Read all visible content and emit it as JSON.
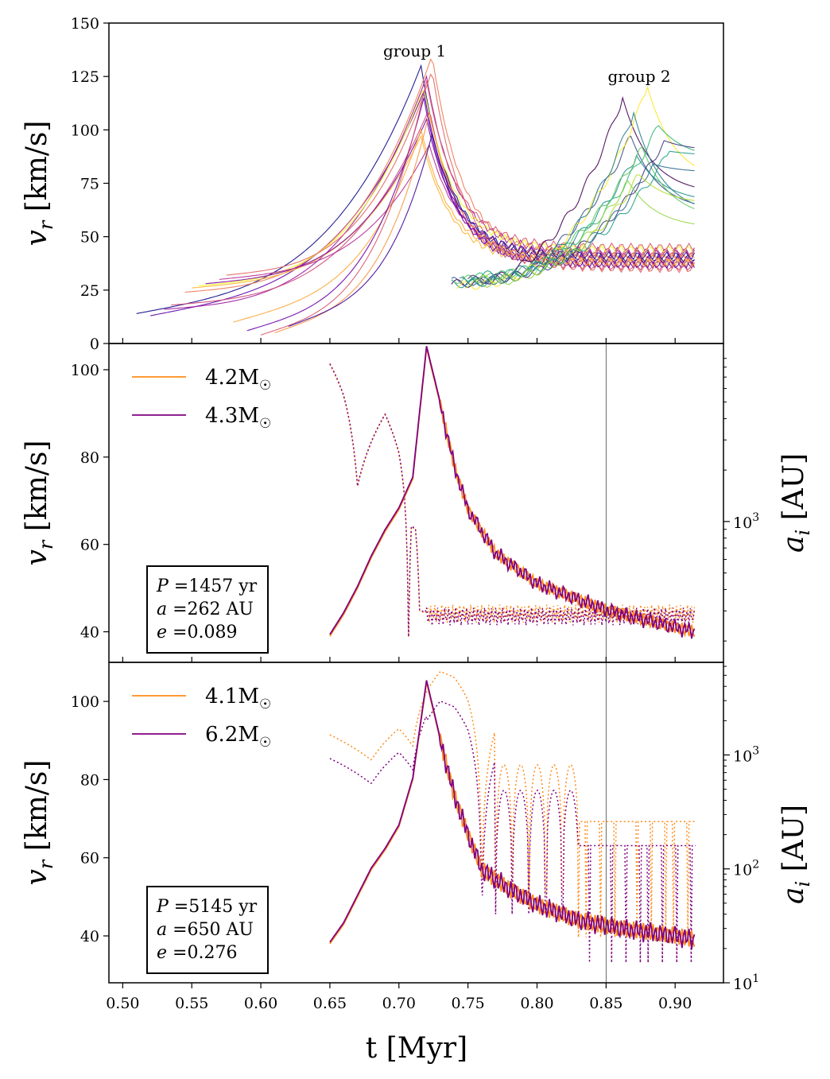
{
  "figure": {
    "xlabel": "t [Myr]"
  },
  "chart_data": [
    {
      "type": "line",
      "panel": "top",
      "ylabel": "v_r [km/s]",
      "xlim": [
        0.49,
        0.935
      ],
      "ylim": [
        0,
        150
      ],
      "yticks": [
        "0",
        "25",
        "50",
        "75",
        "100",
        "125",
        "150"
      ],
      "annotations": [
        {
          "text": "group 1",
          "x": 0.72,
          "y": 137
        },
        {
          "text": "group 2",
          "x": 0.874,
          "y": 125
        }
      ],
      "group1_tracks": [
        {
          "t0": 0.51,
          "v0": 14,
          "peak": 130,
          "tail": 40
        },
        {
          "t0": 0.52,
          "v0": 13,
          "peak": 118,
          "tail": 37
        },
        {
          "t0": 0.53,
          "v0": 16,
          "peak": 125,
          "tail": 43
        },
        {
          "t0": 0.535,
          "v0": 18,
          "peak": 110,
          "tail": 36
        },
        {
          "t0": 0.545,
          "v0": 24,
          "peak": 135,
          "tail": 41
        },
        {
          "t0": 0.55,
          "v0": 26,
          "peak": 97,
          "tail": 38
        },
        {
          "t0": 0.555,
          "v0": 27,
          "peak": 120,
          "tail": 44
        },
        {
          "t0": 0.56,
          "v0": 28,
          "peak": 105,
          "tail": 39
        },
        {
          "t0": 0.57,
          "v0": 30,
          "peak": 93,
          "tail": 42
        },
        {
          "t0": 0.575,
          "v0": 32,
          "peak": 128,
          "tail": 35
        },
        {
          "t0": 0.58,
          "v0": 10,
          "peak": 100,
          "tail": 40
        },
        {
          "t0": 0.59,
          "v0": 6,
          "peak": 115,
          "tail": 37
        },
        {
          "t0": 0.6,
          "v0": 4,
          "peak": 123,
          "tail": 45
        },
        {
          "t0": 0.61,
          "v0": 5,
          "peak": 108,
          "tail": 38
        },
        {
          "t0": 0.62,
          "v0": 8,
          "peak": 98,
          "tail": 41
        }
      ],
      "group2_tracks": [
        {
          "t0": 0.738,
          "v0": 28,
          "tpk": 0.862,
          "peak": 115,
          "tail": 70
        },
        {
          "t0": 0.738,
          "v0": 29,
          "tpk": 0.868,
          "peak": 97,
          "tail": 62
        },
        {
          "t0": 0.738,
          "v0": 28,
          "tpk": 0.872,
          "peak": 88,
          "tail": 66
        },
        {
          "t0": 0.74,
          "v0": 30,
          "tpk": 0.876,
          "peak": 92,
          "tail": 58
        },
        {
          "t0": 0.742,
          "v0": 27,
          "tpk": 0.88,
          "peak": 120,
          "tail": 75
        },
        {
          "t0": 0.744,
          "v0": 29,
          "tpk": 0.884,
          "peak": 84,
          "tail": 80
        },
        {
          "t0": 0.746,
          "v0": 31,
          "tpk": 0.888,
          "peak": 102,
          "tail": 86
        },
        {
          "t0": 0.748,
          "v0": 28,
          "tpk": 0.866,
          "peak": 76,
          "tail": 54
        },
        {
          "t0": 0.75,
          "v0": 30,
          "tpk": 0.892,
          "peak": 95,
          "tail": 90
        },
        {
          "t0": 0.752,
          "v0": 29,
          "tpk": 0.87,
          "peak": 108,
          "tail": 60
        },
        {
          "t0": 0.754,
          "v0": 32,
          "tpk": 0.896,
          "peak": 90,
          "tail": 88
        },
        {
          "t0": 0.756,
          "v0": 30,
          "tpk": 0.874,
          "peak": 79,
          "tail": 65
        }
      ]
    },
    {
      "type": "line",
      "panel": "middle",
      "ylabel": "v_r [km/s]",
      "ylabel_right": "a_i [AU]",
      "ylim": [
        33,
        106
      ],
      "yticks": [
        "40",
        "60",
        "80",
        "100"
      ],
      "y2_scale": "log",
      "y2ticks": [
        "10^3"
      ],
      "series": [
        {
          "name": "4.2M_☉",
          "color": "#ff8c1a"
        },
        {
          "name": "4.3M_☉",
          "color": "#800080"
        }
      ],
      "vline_t": 0.85,
      "info": {
        "P": "1457 yr",
        "a": "262 AU",
        "e": "0.089"
      },
      "v_points": [
        [
          0.65,
          39
        ],
        [
          0.66,
          44
        ],
        [
          0.67,
          50
        ],
        [
          0.68,
          57
        ],
        [
          0.69,
          63
        ],
        [
          0.7,
          68
        ],
        [
          0.71,
          75
        ],
        [
          0.72,
          105
        ],
        [
          0.73,
          92
        ],
        [
          0.74,
          78
        ],
        [
          0.75,
          68
        ],
        [
          0.77,
          58
        ],
        [
          0.8,
          51
        ],
        [
          0.85,
          45
        ],
        [
          0.9,
          41
        ],
        [
          0.915,
          40
        ]
      ],
      "a_points": [
        [
          0.65,
          8300
        ],
        [
          0.66,
          5400
        ],
        [
          0.67,
          1600
        ],
        [
          0.68,
          2900
        ],
        [
          0.69,
          4200
        ],
        [
          0.7,
          2500
        ],
        [
          0.704,
          1400
        ],
        [
          0.707,
          210
        ],
        [
          0.709,
          930
        ],
        [
          0.712,
          900
        ],
        [
          0.715,
          300
        ],
        [
          0.72,
          290
        ],
        [
          0.73,
          280
        ],
        [
          0.915,
          280
        ]
      ]
    },
    {
      "type": "line",
      "panel": "bottom",
      "ylabel": "v_r [km/s]",
      "ylabel_right": "a_i [AU]",
      "ylim": [
        28,
        110
      ],
      "yticks": [
        "40",
        "60",
        "80",
        "100"
      ],
      "y2_scale": "log",
      "y2ticks": [
        "10^1",
        "10^2",
        "10^3"
      ],
      "series": [
        {
          "name": "4.1M_☉",
          "color": "#ff8c1a"
        },
        {
          "name": "6.2M_☉",
          "color": "#800080"
        }
      ],
      "vline_t": 0.85,
      "info": {
        "P": "5145 yr",
        "a": "650 AU",
        "e": "0.276"
      },
      "xlim": [
        0.49,
        0.935
      ],
      "xticks": [
        "0.50",
        "0.55",
        "0.60",
        "0.65",
        "0.70",
        "0.75",
        "0.80",
        "0.85",
        "0.90"
      ],
      "v_points": [
        [
          0.65,
          38
        ],
        [
          0.66,
          43
        ],
        [
          0.67,
          50
        ],
        [
          0.68,
          57
        ],
        [
          0.69,
          62
        ],
        [
          0.7,
          68
        ],
        [
          0.71,
          80
        ],
        [
          0.72,
          105
        ],
        [
          0.73,
          90
        ],
        [
          0.74,
          76
        ],
        [
          0.75,
          66
        ],
        [
          0.76,
          57
        ],
        [
          0.78,
          52
        ],
        [
          0.8,
          48
        ],
        [
          0.83,
          44
        ],
        [
          0.86,
          42
        ],
        [
          0.9,
          40
        ],
        [
          0.915,
          39
        ]
      ]
    }
  ]
}
